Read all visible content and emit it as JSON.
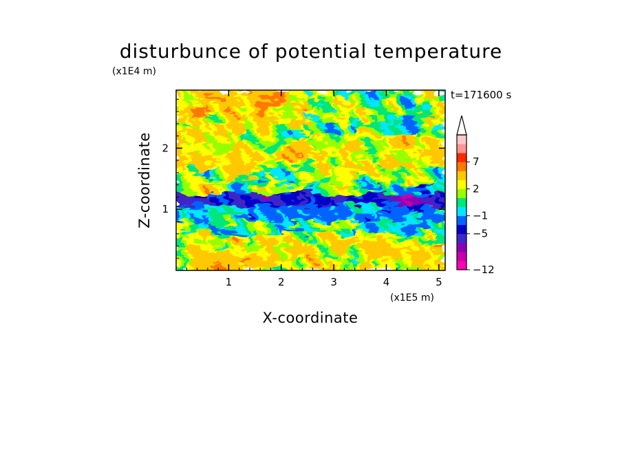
{
  "chart_data": {
    "type": "heatmap",
    "title": "disturbunce of potential temperature",
    "xlabel": "X-coordinate",
    "ylabel": "Z-coordinate",
    "x_unit": "(x1E5 m)",
    "y_unit": "(x1E4 m)",
    "time_label": "t=171600 s",
    "xlim": [
      0,
      5.12
    ],
    "ylim": [
      0,
      2.95
    ],
    "x_ticks": [
      "1",
      "2",
      "3",
      "4",
      "5"
    ],
    "y_ticks": [
      "1",
      "2"
    ],
    "colorbar": {
      "levels": [
        -12,
        -11,
        -9,
        -7,
        -5,
        -3,
        -1,
        0,
        1,
        2,
        3,
        5,
        7,
        9,
        11
      ],
      "labels": [
        "7",
        "2",
        "-1",
        "-5",
        "-12"
      ],
      "colors": [
        "#ff00b4",
        "#c800aa",
        "#8c00b4",
        "#3c28c8",
        "#0000c8",
        "#0064ff",
        "#00e6ff",
        "#00e678",
        "#96ff00",
        "#ffff00",
        "#ffc800",
        "#ff7800",
        "#ff2800",
        "#ff9696",
        "#ffc8c8"
      ],
      "extend": "max"
    },
    "field": {
      "description": "layered disturbance field",
      "bands": [
        {
          "z_range": [
            0.0,
            0.6
          ],
          "value": 2
        },
        {
          "z_range": [
            0.6,
            0.8
          ],
          "value": 0
        },
        {
          "z_range": [
            0.8,
            1.3
          ],
          "value": -2
        },
        {
          "z_range": [
            1.1,
            1.3
          ],
          "value": -5
        },
        {
          "z_range": [
            1.3,
            1.7
          ],
          "value": 1
        },
        {
          "z_range": [
            1.7,
            2.4
          ],
          "value": 2
        },
        {
          "z_range": [
            2.4,
            2.95
          ],
          "value": 3
        }
      ]
    }
  }
}
